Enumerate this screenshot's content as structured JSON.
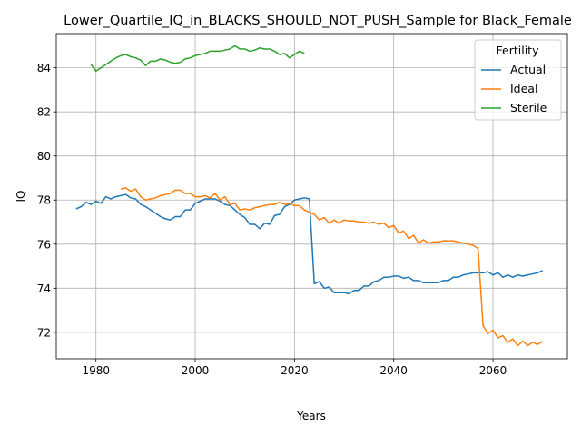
{
  "chart_data": {
    "type": "line",
    "title": "Lower_Quartile_IQ_in_BLACKS_SHOULD_NOT_PUSH_Sample for Black_Female",
    "xlabel": "Years",
    "ylabel": "IQ",
    "xlim": [
      1972,
      2075
    ],
    "ylim": [
      70.8,
      85.55
    ],
    "xticks": [
      1980,
      2000,
      2020,
      2040,
      2060
    ],
    "yticks": [
      72,
      74,
      76,
      78,
      80,
      82,
      84
    ],
    "grid": true,
    "legend": {
      "title": "Fertility",
      "position": "top-right"
    },
    "series": [
      {
        "name": "Actual",
        "color": "#1f77b4",
        "points": [
          [
            1976,
            77.6
          ],
          [
            1977,
            77.7
          ],
          [
            1978,
            77.9
          ],
          [
            1979,
            77.8
          ],
          [
            1980,
            77.95
          ],
          [
            1981,
            77.85
          ],
          [
            1982,
            78.15
          ],
          [
            1983,
            78.05
          ],
          [
            1984,
            78.15
          ],
          [
            1985,
            78.2
          ],
          [
            1986,
            78.25
          ],
          [
            1987,
            78.1
          ],
          [
            1988,
            78.05
          ],
          [
            1989,
            77.8
          ],
          [
            1990,
            77.7
          ],
          [
            1991,
            77.55
          ],
          [
            1992,
            77.4
          ],
          [
            1993,
            77.25
          ],
          [
            1994,
            77.15
          ],
          [
            1995,
            77.1
          ],
          [
            1996,
            77.25
          ],
          [
            1997,
            77.25
          ],
          [
            1998,
            77.55
          ],
          [
            1999,
            77.55
          ],
          [
            2000,
            77.85
          ],
          [
            2001,
            77.95
          ],
          [
            2002,
            78.05
          ],
          [
            2003,
            78.05
          ],
          [
            2004,
            78.05
          ],
          [
            2005,
            77.95
          ],
          [
            2006,
            77.8
          ],
          [
            2007,
            77.75
          ],
          [
            2008,
            77.55
          ],
          [
            2009,
            77.35
          ],
          [
            2010,
            77.2
          ],
          [
            2011,
            76.9
          ],
          [
            2012,
            76.9
          ],
          [
            2013,
            76.7
          ],
          [
            2014,
            76.95
          ],
          [
            2015,
            76.9
          ],
          [
            2016,
            77.3
          ],
          [
            2017,
            77.35
          ],
          [
            2018,
            77.7
          ],
          [
            2019,
            77.8
          ],
          [
            2020,
            78.0
          ],
          [
            2021,
            78.05
          ],
          [
            2022,
            78.1
          ],
          [
            2023,
            78.05
          ],
          [
            2024,
            74.2
          ],
          [
            2025,
            74.3
          ],
          [
            2026,
            74.0
          ],
          [
            2027,
            74.05
          ],
          [
            2028,
            73.8
          ],
          [
            2029,
            73.8
          ],
          [
            2030,
            73.8
          ],
          [
            2031,
            73.75
          ],
          [
            2032,
            73.9
          ],
          [
            2033,
            73.9
          ],
          [
            2034,
            74.1
          ],
          [
            2035,
            74.1
          ],
          [
            2036,
            74.3
          ],
          [
            2037,
            74.35
          ],
          [
            2038,
            74.5
          ],
          [
            2039,
            74.5
          ],
          [
            2040,
            74.55
          ],
          [
            2041,
            74.55
          ],
          [
            2042,
            74.45
          ],
          [
            2043,
            74.5
          ],
          [
            2044,
            74.35
          ],
          [
            2045,
            74.35
          ],
          [
            2046,
            74.25
          ],
          [
            2047,
            74.25
          ],
          [
            2048,
            74.25
          ],
          [
            2049,
            74.25
          ],
          [
            2050,
            74.35
          ],
          [
            2051,
            74.35
          ],
          [
            2052,
            74.5
          ],
          [
            2053,
            74.5
          ],
          [
            2054,
            74.6
          ],
          [
            2055,
            74.65
          ],
          [
            2056,
            74.7
          ],
          [
            2057,
            74.7
          ],
          [
            2058,
            74.7
          ],
          [
            2059,
            74.75
          ],
          [
            2060,
            74.6
          ],
          [
            2061,
            74.7
          ],
          [
            2062,
            74.5
          ],
          [
            2063,
            74.6
          ],
          [
            2064,
            74.5
          ],
          [
            2065,
            74.6
          ],
          [
            2066,
            74.55
          ],
          [
            2067,
            74.6
          ],
          [
            2068,
            74.65
          ],
          [
            2069,
            74.7
          ],
          [
            2070,
            74.8
          ]
        ]
      },
      {
        "name": "Ideal",
        "color": "#ff7f0e",
        "points": [
          [
            1985,
            78.5
          ],
          [
            1986,
            78.55
          ],
          [
            1987,
            78.4
          ],
          [
            1988,
            78.5
          ],
          [
            1989,
            78.15
          ],
          [
            1990,
            78.0
          ],
          [
            1991,
            78.05
          ],
          [
            1992,
            78.1
          ],
          [
            1993,
            78.2
          ],
          [
            1994,
            78.25
          ],
          [
            1995,
            78.3
          ],
          [
            1996,
            78.45
          ],
          [
            1997,
            78.45
          ],
          [
            1998,
            78.3
          ],
          [
            1999,
            78.3
          ],
          [
            2000,
            78.15
          ],
          [
            2001,
            78.15
          ],
          [
            2002,
            78.2
          ],
          [
            2003,
            78.1
          ],
          [
            2004,
            78.3
          ],
          [
            2005,
            78.0
          ],
          [
            2006,
            78.15
          ],
          [
            2007,
            77.8
          ],
          [
            2008,
            77.85
          ],
          [
            2009,
            77.55
          ],
          [
            2010,
            77.6
          ],
          [
            2011,
            77.55
          ],
          [
            2012,
            77.65
          ],
          [
            2013,
            77.7
          ],
          [
            2014,
            77.75
          ],
          [
            2015,
            77.8
          ],
          [
            2016,
            77.8
          ],
          [
            2017,
            77.9
          ],
          [
            2018,
            77.8
          ],
          [
            2019,
            77.85
          ],
          [
            2020,
            77.75
          ],
          [
            2021,
            77.75
          ],
          [
            2022,
            77.55
          ],
          [
            2023,
            77.45
          ],
          [
            2024,
            77.35
          ],
          [
            2025,
            77.1
          ],
          [
            2026,
            77.2
          ],
          [
            2027,
            76.95
          ],
          [
            2028,
            77.1
          ],
          [
            2029,
            76.95
          ],
          [
            2030,
            77.1
          ],
          [
            2031,
            77.05
          ],
          [
            2032,
            77.05
          ],
          [
            2033,
            77.0
          ],
          [
            2034,
            77.0
          ],
          [
            2035,
            76.95
          ],
          [
            2036,
            77.0
          ],
          [
            2037,
            76.9
          ],
          [
            2038,
            76.95
          ],
          [
            2039,
            76.75
          ],
          [
            2040,
            76.85
          ],
          [
            2041,
            76.5
          ],
          [
            2042,
            76.6
          ],
          [
            2043,
            76.25
          ],
          [
            2044,
            76.4
          ],
          [
            2045,
            76.05
          ],
          [
            2046,
            76.2
          ],
          [
            2047,
            76.05
          ],
          [
            2048,
            76.1
          ],
          [
            2049,
            76.1
          ],
          [
            2050,
            76.15
          ],
          [
            2051,
            76.15
          ],
          [
            2052,
            76.15
          ],
          [
            2053,
            76.1
          ],
          [
            2054,
            76.05
          ],
          [
            2055,
            76.0
          ],
          [
            2056,
            75.95
          ],
          [
            2057,
            75.8
          ],
          [
            2058,
            72.3
          ],
          [
            2059,
            71.95
          ],
          [
            2060,
            72.1
          ],
          [
            2061,
            71.75
          ],
          [
            2062,
            71.85
          ],
          [
            2063,
            71.55
          ],
          [
            2064,
            71.7
          ],
          [
            2065,
            71.4
          ],
          [
            2066,
            71.6
          ],
          [
            2067,
            71.4
          ],
          [
            2068,
            71.55
          ],
          [
            2069,
            71.45
          ],
          [
            2070,
            71.6
          ]
        ]
      },
      {
        "name": "Sterile",
        "color": "#2ca02c",
        "points": [
          [
            1979,
            84.15
          ],
          [
            1980,
            83.85
          ],
          [
            1981,
            84.0
          ],
          [
            1982,
            84.15
          ],
          [
            1983,
            84.3
          ],
          [
            1984,
            84.45
          ],
          [
            1985,
            84.55
          ],
          [
            1986,
            84.6
          ],
          [
            1987,
            84.5
          ],
          [
            1988,
            84.45
          ],
          [
            1989,
            84.35
          ],
          [
            1990,
            84.1
          ],
          [
            1991,
            84.3
          ],
          [
            1992,
            84.3
          ],
          [
            1993,
            84.4
          ],
          [
            1994,
            84.35
          ],
          [
            1995,
            84.25
          ],
          [
            1996,
            84.2
          ],
          [
            1997,
            84.25
          ],
          [
            1998,
            84.4
          ],
          [
            1999,
            84.45
          ],
          [
            2000,
            84.55
          ],
          [
            2001,
            84.6
          ],
          [
            2002,
            84.65
          ],
          [
            2003,
            84.75
          ],
          [
            2004,
            84.75
          ],
          [
            2005,
            84.75
          ],
          [
            2006,
            84.8
          ],
          [
            2007,
            84.85
          ],
          [
            2008,
            85.0
          ],
          [
            2009,
            84.85
          ],
          [
            2010,
            84.85
          ],
          [
            2011,
            84.75
          ],
          [
            2012,
            84.8
          ],
          [
            2013,
            84.9
          ],
          [
            2014,
            84.85
          ],
          [
            2015,
            84.85
          ],
          [
            2016,
            84.75
          ],
          [
            2017,
            84.6
          ],
          [
            2018,
            84.65
          ],
          [
            2019,
            84.45
          ],
          [
            2020,
            84.6
          ],
          [
            2021,
            84.75
          ],
          [
            2022,
            84.65
          ]
        ]
      }
    ]
  }
}
